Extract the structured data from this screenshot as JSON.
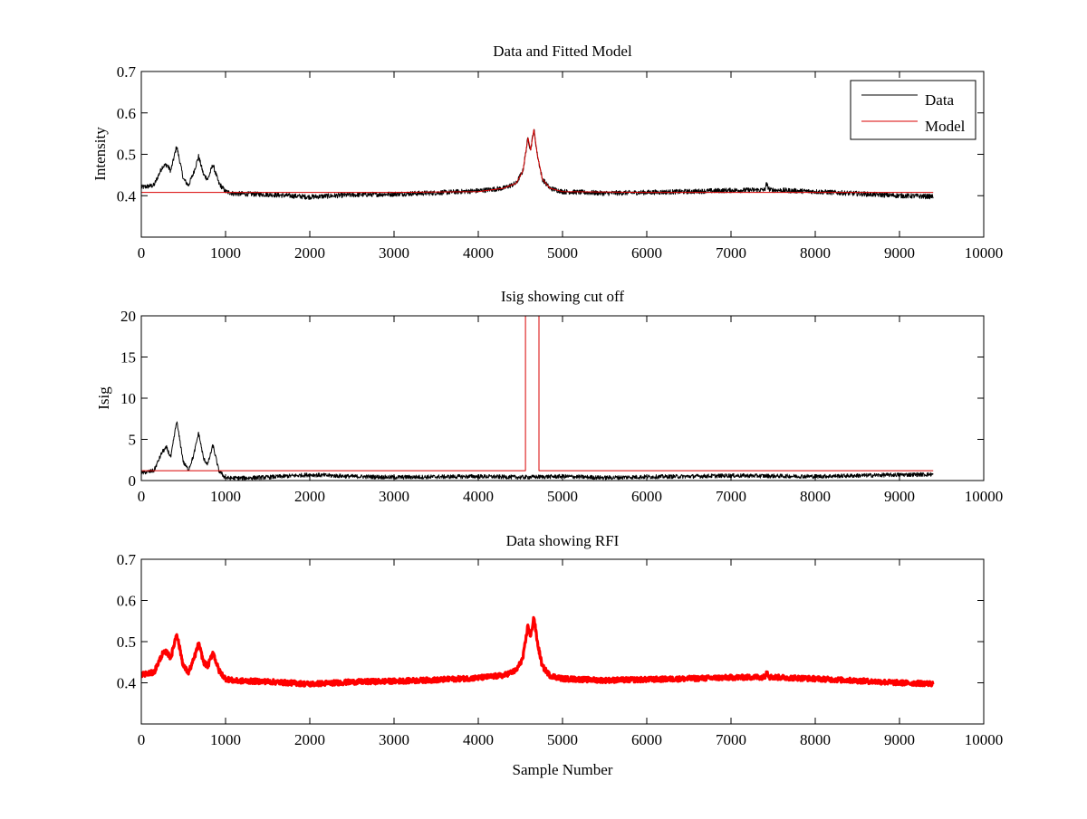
{
  "chart_data": [
    {
      "type": "line",
      "title": "Data and Fitted Model",
      "xlabel": "",
      "ylabel": "Intensity",
      "xlim": [
        0,
        10000
      ],
      "ylim": [
        0.3,
        0.7
      ],
      "xticks": [
        "0",
        "1000",
        "2000",
        "3000",
        "4000",
        "5000",
        "6000",
        "7000",
        "8000",
        "9000",
        "10000"
      ],
      "yticks": [
        "0.4",
        "0.5",
        "0.6",
        "0.7"
      ],
      "legend_position": "top-right",
      "series": [
        {
          "name": "Data",
          "color": "#000000",
          "noise": 0.006,
          "points": [
            [
              0,
              0.42
            ],
            [
              150,
              0.425
            ],
            [
              250,
              0.47
            ],
            [
              300,
              0.475
            ],
            [
              350,
              0.46
            ],
            [
              420,
              0.52
            ],
            [
              500,
              0.44
            ],
            [
              560,
              0.425
            ],
            [
              620,
              0.455
            ],
            [
              680,
              0.495
            ],
            [
              740,
              0.45
            ],
            [
              790,
              0.44
            ],
            [
              850,
              0.475
            ],
            [
              920,
              0.43
            ],
            [
              1000,
              0.41
            ],
            [
              1100,
              0.405
            ],
            [
              1500,
              0.403
            ],
            [
              2000,
              0.397
            ],
            [
              2500,
              0.402
            ],
            [
              3000,
              0.404
            ],
            [
              3500,
              0.407
            ],
            [
              4000,
              0.412
            ],
            [
              4300,
              0.418
            ],
            [
              4450,
              0.43
            ],
            [
              4530,
              0.46
            ],
            [
              4590,
              0.54
            ],
            [
              4620,
              0.51
            ],
            [
              4660,
              0.56
            ],
            [
              4700,
              0.5
            ],
            [
              4760,
              0.44
            ],
            [
              4850,
              0.418
            ],
            [
              5000,
              0.41
            ],
            [
              5500,
              0.406
            ],
            [
              6000,
              0.408
            ],
            [
              6500,
              0.41
            ],
            [
              7000,
              0.413
            ],
            [
              7400,
              0.414
            ],
            [
              7420,
              0.428
            ],
            [
              7460,
              0.414
            ],
            [
              8000,
              0.41
            ],
            [
              8500,
              0.405
            ],
            [
              9000,
              0.4
            ],
            [
              9400,
              0.398
            ]
          ]
        },
        {
          "name": "Model",
          "color": "#d90000",
          "noise": 0,
          "points": [
            [
              0,
              0.408
            ],
            [
              1000,
              0.408
            ],
            [
              3000,
              0.408
            ],
            [
              4000,
              0.41
            ],
            [
              4300,
              0.418
            ],
            [
              4450,
              0.43
            ],
            [
              4530,
              0.46
            ],
            [
              4590,
              0.54
            ],
            [
              4620,
              0.51
            ],
            [
              4660,
              0.56
            ],
            [
              4700,
              0.5
            ],
            [
              4760,
              0.44
            ],
            [
              4850,
              0.418
            ],
            [
              5000,
              0.41
            ],
            [
              6000,
              0.408
            ],
            [
              8000,
              0.408
            ],
            [
              9400,
              0.408
            ]
          ]
        }
      ]
    },
    {
      "type": "line",
      "title": "Isig showing cut off",
      "xlabel": "",
      "ylabel": "Isig",
      "xlim": [
        0,
        10000
      ],
      "ylim": [
        0,
        20
      ],
      "xticks": [
        "0",
        "1000",
        "2000",
        "3000",
        "4000",
        "5000",
        "6000",
        "7000",
        "8000",
        "9000",
        "10000"
      ],
      "yticks": [
        "0",
        "5",
        "10",
        "15",
        "20"
      ],
      "series": [
        {
          "color": "#000000",
          "noise": 0.25,
          "points": [
            [
              0,
              0.9
            ],
            [
              150,
              1.2
            ],
            [
              250,
              3.5
            ],
            [
              300,
              4.0
            ],
            [
              350,
              2.8
            ],
            [
              420,
              7.2
            ],
            [
              500,
              2.2
            ],
            [
              560,
              1.3
            ],
            [
              620,
              3.0
            ],
            [
              680,
              5.8
            ],
            [
              740,
              2.6
            ],
            [
              790,
              2.0
            ],
            [
              850,
              4.3
            ],
            [
              920,
              1.2
            ],
            [
              1000,
              0.3
            ],
            [
              1200,
              0.3
            ],
            [
              1500,
              0.4
            ],
            [
              2000,
              0.7
            ],
            [
              2500,
              0.5
            ],
            [
              3000,
              0.4
            ],
            [
              3500,
              0.45
            ],
            [
              4000,
              0.5
            ],
            [
              4500,
              0.4
            ],
            [
              5000,
              0.5
            ],
            [
              5500,
              0.35
            ],
            [
              6000,
              0.45
            ],
            [
              6500,
              0.5
            ],
            [
              7000,
              0.6
            ],
            [
              7500,
              0.55
            ],
            [
              8000,
              0.5
            ],
            [
              8500,
              0.6
            ],
            [
              9000,
              0.7
            ],
            [
              9400,
              0.75
            ]
          ]
        },
        {
          "color": "#d90000",
          "noise": 0,
          "points": [
            [
              0,
              1.2
            ],
            [
              4560,
              1.2
            ],
            [
              4560,
              20
            ],
            [
              4720,
              20
            ],
            [
              4720,
              1.2
            ],
            [
              9400,
              1.2
            ]
          ]
        }
      ]
    },
    {
      "type": "line",
      "title": "Data showing RFI",
      "xlabel": "Sample Number",
      "ylabel": "",
      "xlim": [
        0,
        10000
      ],
      "ylim": [
        0.3,
        0.7
      ],
      "xticks": [
        "0",
        "1000",
        "2000",
        "3000",
        "4000",
        "5000",
        "6000",
        "7000",
        "8000",
        "9000",
        "10000"
      ],
      "yticks": [
        "0.4",
        "0.5",
        "0.6",
        "0.7"
      ],
      "series": [
        {
          "color": "#ff0000",
          "noise": 0.006,
          "marker": "plus",
          "points": [
            [
              0,
              0.42
            ],
            [
              150,
              0.425
            ],
            [
              250,
              0.47
            ],
            [
              300,
              0.475
            ],
            [
              350,
              0.46
            ],
            [
              420,
              0.52
            ],
            [
              500,
              0.44
            ],
            [
              560,
              0.425
            ],
            [
              620,
              0.455
            ],
            [
              680,
              0.495
            ],
            [
              740,
              0.45
            ],
            [
              790,
              0.44
            ],
            [
              850,
              0.475
            ],
            [
              920,
              0.43
            ],
            [
              1000,
              0.41
            ],
            [
              1100,
              0.405
            ],
            [
              1500,
              0.403
            ],
            [
              2000,
              0.397
            ],
            [
              2500,
              0.402
            ],
            [
              3000,
              0.404
            ],
            [
              3500,
              0.407
            ],
            [
              4000,
              0.412
            ],
            [
              4300,
              0.418
            ],
            [
              4450,
              0.43
            ],
            [
              4530,
              0.46
            ],
            [
              4590,
              0.54
            ],
            [
              4620,
              0.51
            ],
            [
              4660,
              0.56
            ],
            [
              4700,
              0.5
            ],
            [
              4760,
              0.44
            ],
            [
              4850,
              0.418
            ],
            [
              5000,
              0.41
            ],
            [
              5500,
              0.406
            ],
            [
              6000,
              0.408
            ],
            [
              6500,
              0.41
            ],
            [
              7000,
              0.413
            ],
            [
              7400,
              0.414
            ],
            [
              7420,
              0.428
            ],
            [
              7460,
              0.414
            ],
            [
              8000,
              0.41
            ],
            [
              8500,
              0.405
            ],
            [
              9000,
              0.4
            ],
            [
              9400,
              0.398
            ]
          ]
        }
      ]
    }
  ]
}
